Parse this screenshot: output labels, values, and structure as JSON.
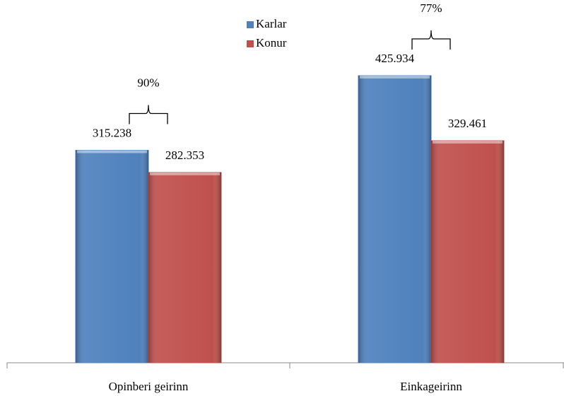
{
  "chart_data": {
    "type": "bar",
    "categories": [
      "Opinberi geirinn",
      "Einkageirinn"
    ],
    "series": [
      {
        "name": "Karlar",
        "color": "#4f81bd",
        "values": [
          315238,
          425934
        ],
        "value_labels": [
          "315.238",
          "425.934"
        ]
      },
      {
        "name": "Konur",
        "color": "#c0504d",
        "values": [
          282353,
          329461
        ],
        "value_labels": [
          "282.353",
          "329.461"
        ]
      }
    ],
    "annotations": [
      "90%",
      "77%"
    ]
  }
}
